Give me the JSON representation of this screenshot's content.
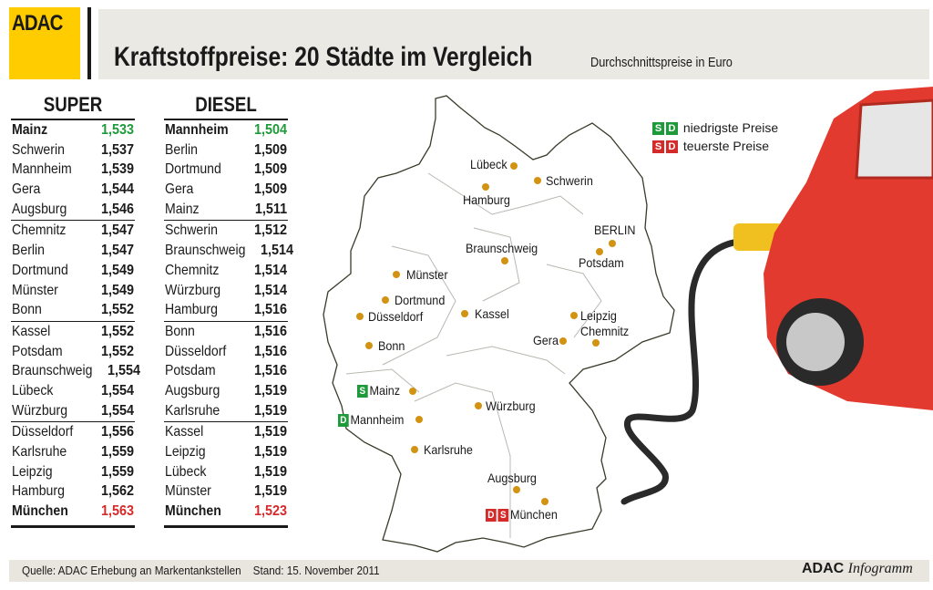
{
  "header": {
    "logo": "ADAC",
    "title": "Kraftstoffpreise: 20 Städte im Vergleich",
    "subtitle": "Durchschnittspreise in Euro"
  },
  "colors": {
    "logo_yellow": "#ffcc00",
    "lowest": "#1f9a3a",
    "highest": "#d42a2a",
    "city_dot": "#d39312"
  },
  "super": {
    "title": "SUPER",
    "rows": [
      [
        "Mainz",
        "1,533"
      ],
      [
        "Schwerin",
        "1,537"
      ],
      [
        "Mannheim",
        "1,539"
      ],
      [
        "Gera",
        "1,544"
      ],
      [
        "Augsburg",
        "1,546"
      ],
      [
        "Chemnitz",
        "1,547"
      ],
      [
        "Berlin",
        "1,547"
      ],
      [
        "Dortmund",
        "1,549"
      ],
      [
        "Münster",
        "1,549"
      ],
      [
        "Bonn",
        "1,552"
      ],
      [
        "Kassel",
        "1,552"
      ],
      [
        "Potsdam",
        "1,552"
      ],
      [
        "Braunschweig",
        "1,554"
      ],
      [
        "Lübeck",
        "1,554"
      ],
      [
        "Würzburg",
        "1,554"
      ],
      [
        "Düsseldorf",
        "1,556"
      ],
      [
        "Karlsruhe",
        "1,559"
      ],
      [
        "Leipzig",
        "1,559"
      ],
      [
        "Hamburg",
        "1,562"
      ],
      [
        "München",
        "1,563"
      ]
    ]
  },
  "diesel": {
    "title": "DIESEL",
    "rows": [
      [
        "Mannheim",
        "1,504"
      ],
      [
        "Berlin",
        "1,509"
      ],
      [
        "Dortmund",
        "1,509"
      ],
      [
        "Gera",
        "1,509"
      ],
      [
        "Mainz",
        "1,511"
      ],
      [
        "Schwerin",
        "1,512"
      ],
      [
        "Braunschweig",
        "1,514"
      ],
      [
        "Chemnitz",
        "1,514"
      ],
      [
        "Würzburg",
        "1,514"
      ],
      [
        "Hamburg",
        "1,516"
      ],
      [
        "Bonn",
        "1,516"
      ],
      [
        "Düsseldorf",
        "1,516"
      ],
      [
        "Potsdam",
        "1,516"
      ],
      [
        "Augsburg",
        "1,519"
      ],
      [
        "Karlsruhe",
        "1,519"
      ],
      [
        "Kassel",
        "1,519"
      ],
      [
        "Leipzig",
        "1,519"
      ],
      [
        "Lübeck",
        "1,519"
      ],
      [
        "Münster",
        "1,519"
      ],
      [
        "München",
        "1,523"
      ]
    ]
  },
  "legend": {
    "s": "S",
    "d": "D",
    "lowest": "niedrigste Preise",
    "highest": "teuerste Preise"
  },
  "map": {
    "cities": [
      "Lübeck",
      "Schwerin",
      "Hamburg",
      "BERLIN",
      "Potsdam",
      "Braunschweig",
      "Münster",
      "Dortmund",
      "Düsseldorf",
      "Kassel",
      "Leipzig",
      "Chemnitz",
      "Gera",
      "Bonn",
      "Mainz",
      "Würzburg",
      "Mannheim",
      "Karlsruhe",
      "Augsburg",
      "München"
    ],
    "badges": {
      "Mainz": [
        [
          "S",
          "lowest"
        ]
      ],
      "Mannheim": [
        [
          "D",
          "lowest"
        ]
      ],
      "München": [
        [
          "D",
          "highest"
        ],
        [
          "S",
          "highest"
        ]
      ]
    }
  },
  "footer": {
    "source": "Quelle: ADAC Erhebung an Markentankstellen    Stand: 15. November 2011",
    "brand_bold": "ADAC",
    "brand_italic": "Infogramm"
  }
}
